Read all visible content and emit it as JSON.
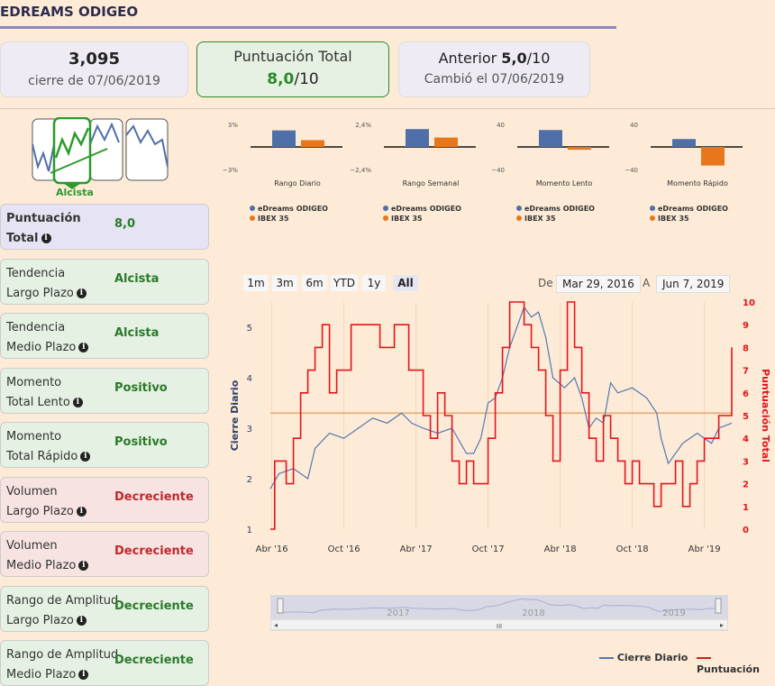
{
  "header": {
    "title": "EDREAMS ODIGEO"
  },
  "cards": {
    "price": {
      "value": "3,095",
      "sub": "cierre de 07/06/2019"
    },
    "score": {
      "label": "Puntuación Total",
      "value": "8,0",
      "suffix": "/10"
    },
    "previous": {
      "label": "Anterior",
      "value": "5,0",
      "suffix": "/10",
      "sub": "Cambió el 07/06/2019"
    }
  },
  "trend_badge": "Alcista",
  "sidebar": [
    {
      "l1": "Puntuación",
      "l2": "Total",
      "value": "8,0",
      "tone": "purple",
      "color": "#2a7a2a"
    },
    {
      "l1": "Tendencia",
      "l2": "Largo Plazo",
      "value": "Alcista",
      "tone": "green",
      "color": "#2a7a2a"
    },
    {
      "l1": "Tendencia",
      "l2": "Medio Plazo",
      "value": "Alcista",
      "tone": "green",
      "color": "#2a7a2a"
    },
    {
      "l1": "Momento",
      "l2": "Total Lento",
      "value": "Positivo",
      "tone": "green",
      "color": "#2a7a2a"
    },
    {
      "l1": "Momento",
      "l2": "Total Rápido",
      "value": "Positivo",
      "tone": "green",
      "color": "#2a7a2a"
    },
    {
      "l1": "Volumen",
      "l2": "Largo Plazo",
      "value": "Decreciente",
      "tone": "red",
      "color": "#c0282d"
    },
    {
      "l1": "Volumen",
      "l2": "Medio Plazo",
      "value": "Decreciente",
      "tone": "red",
      "color": "#c0282d"
    },
    {
      "l1": "Rango de Amplitud",
      "l2": "Largo Plazo",
      "value": "Decreciente",
      "tone": "green",
      "color": "#2a7a2a"
    },
    {
      "l1": "Rango de Amplitud",
      "l2": "Medio Plazo",
      "value": "Decreciente",
      "tone": "green",
      "color": "#2a7a2a"
    }
  ],
  "mini_legend": {
    "a": "eDreams ODIGEO",
    "b": "IBEX 35"
  },
  "range": {
    "buttons": [
      "1m",
      "3m",
      "6m",
      "YTD",
      "1y",
      "All"
    ],
    "selected": "All",
    "from_label": "De",
    "from": "Mar 29, 2016",
    "to_label": "A",
    "to": "Jun 7, 2019"
  },
  "navigator_labels": [
    "2017",
    "2018",
    "2019"
  ],
  "navigator_scroll_glyph": "III",
  "legend": {
    "a": "Cierre Diario",
    "b": "Puntuación"
  },
  "colors": {
    "blue": "#4f6fa8",
    "orange": "#e8761b",
    "red": "#e4141b",
    "line_blue": "#5478b0",
    "ref": "#e8a870"
  },
  "chart_data": [
    {
      "type": "bar",
      "title": "Rango Diario",
      "categories": [
        "eDreams ODIGEO",
        "IBEX 35"
      ],
      "values": [
        2.2,
        0.9
      ],
      "ylim": [
        -3,
        3
      ],
      "tick_labels": [
        "3%",
        "−3%"
      ]
    },
    {
      "type": "bar",
      "title": "Rango Semanal",
      "categories": [
        "eDreams ODIGEO",
        "IBEX 35"
      ],
      "values": [
        1.9,
        1.0
      ],
      "ylim": [
        -2.4,
        2.4
      ],
      "tick_labels": [
        "2,4%",
        "−2,4%"
      ]
    },
    {
      "type": "bar",
      "title": "Momento Lento",
      "categories": [
        "eDreams ODIGEO",
        "IBEX 35"
      ],
      "values": [
        30,
        -5
      ],
      "ylim": [
        -40,
        40
      ],
      "tick_labels": [
        "40",
        "−40"
      ]
    },
    {
      "type": "bar",
      "title": "Momento Rápido",
      "categories": [
        "eDreams ODIGEO",
        "IBEX 35"
      ],
      "values": [
        14,
        -33
      ],
      "ylim": [
        -40,
        40
      ],
      "tick_labels": [
        "40",
        "−40"
      ]
    },
    {
      "type": "line",
      "ylabel": "Cierre Diario",
      "y2label": "Puntuación Total",
      "x_ticks": [
        "Abr '16",
        "Oct '16",
        "Abr '17",
        "Oct '17",
        "Abr '18",
        "Oct '18",
        "Abr '19"
      ],
      "y_ticks": [
        "1",
        "2",
        "3",
        "4",
        "5"
      ],
      "y2_ticks": [
        "0",
        "1",
        "2",
        "3",
        "4",
        "5",
        "6",
        "7",
        "8",
        "9",
        "10"
      ],
      "ylim": [
        1,
        5.5
      ],
      "y2lim": [
        0,
        10
      ],
      "ref_line": 3.3,
      "series": [
        {
          "name": "Cierre Diario",
          "x": [
            2016.24,
            2016.3,
            2016.4,
            2016.5,
            2016.55,
            2016.65,
            2016.75,
            2016.85,
            2016.95,
            2017.05,
            2017.15,
            2017.22,
            2017.3,
            2017.4,
            2017.5,
            2017.6,
            2017.65,
            2017.7,
            2017.75,
            2017.8,
            2017.85,
            2017.9,
            2017.95,
            2018.0,
            2018.05,
            2018.1,
            2018.15,
            2018.2,
            2018.28,
            2018.35,
            2018.4,
            2018.45,
            2018.5,
            2018.55,
            2018.6,
            2018.65,
            2018.75,
            2018.85,
            2018.92,
            2018.95,
            2019.0,
            2019.1,
            2019.2,
            2019.3,
            2019.35,
            2019.44
          ],
          "y": [
            1.8,
            2.1,
            2.2,
            2.0,
            2.6,
            2.9,
            2.8,
            3.0,
            3.2,
            3.1,
            3.3,
            3.1,
            3.0,
            2.9,
            3.0,
            2.5,
            2.5,
            2.8,
            3.5,
            3.6,
            4.0,
            4.6,
            5.0,
            5.4,
            5.2,
            5.3,
            4.8,
            4.0,
            3.8,
            4.0,
            3.6,
            3.0,
            3.2,
            3.1,
            3.9,
            3.7,
            3.8,
            3.6,
            3.3,
            2.8,
            2.3,
            2.7,
            2.9,
            2.7,
            3.0,
            3.1
          ]
        },
        {
          "name": "Puntuación",
          "x": [
            2016.24,
            2016.27,
            2016.35,
            2016.4,
            2016.45,
            2016.5,
            2016.55,
            2016.6,
            2016.65,
            2016.7,
            2016.8,
            2016.9,
            2017.0,
            2017.1,
            2017.2,
            2017.3,
            2017.35,
            2017.4,
            2017.45,
            2017.5,
            2017.55,
            2017.6,
            2017.65,
            2017.7,
            2017.75,
            2017.8,
            2017.85,
            2017.9,
            2017.95,
            2018.0,
            2018.05,
            2018.1,
            2018.15,
            2018.2,
            2018.25,
            2018.3,
            2018.35,
            2018.4,
            2018.45,
            2018.5,
            2018.55,
            2018.6,
            2018.65,
            2018.7,
            2018.75,
            2018.8,
            2018.85,
            2018.9,
            2018.95,
            2019.0,
            2019.05,
            2019.1,
            2019.15,
            2019.2,
            2019.25,
            2019.3,
            2019.35,
            2019.4,
            2019.44
          ],
          "y": [
            0,
            3,
            2,
            4,
            6,
            7,
            8,
            9,
            6,
            7,
            9,
            9,
            8,
            9,
            7,
            5,
            4,
            6,
            5,
            3,
            2,
            3,
            2,
            2,
            4,
            6,
            8,
            10,
            10,
            9,
            8,
            7,
            5,
            3,
            7,
            10,
            8,
            6,
            4,
            3,
            5,
            4,
            3,
            2,
            3,
            2,
            2,
            1,
            2,
            2,
            3,
            1,
            2,
            3,
            4,
            4,
            5,
            5,
            8
          ]
        }
      ]
    }
  ]
}
